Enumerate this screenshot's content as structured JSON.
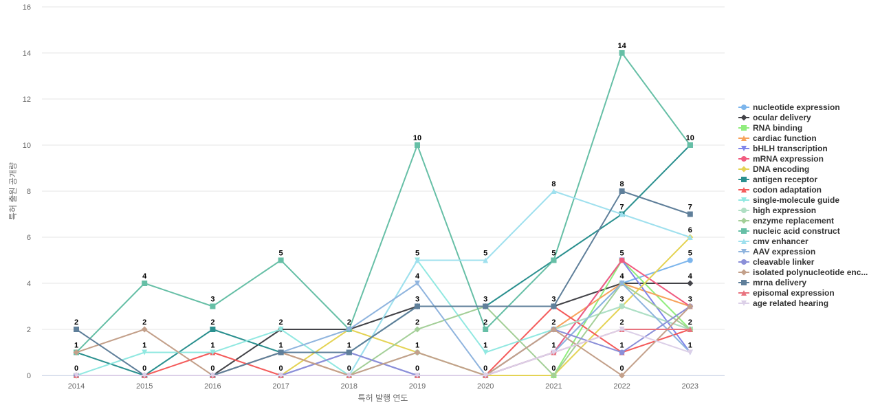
{
  "chart_data": {
    "type": "line",
    "title": "",
    "xlabel": "특허 발행 연도",
    "ylabel": "특허 출원 공개량",
    "categories": [
      "2014",
      "2015",
      "2016",
      "2017",
      "2018",
      "2019",
      "2020",
      "2021",
      "2022",
      "2023"
    ],
    "ylim": [
      0,
      16
    ],
    "yticks": [
      0,
      2,
      4,
      6,
      8,
      10,
      12,
      14,
      16
    ],
    "grid": true,
    "legend": "right",
    "series": [
      {
        "name": "nucleotide expression",
        "color": "#7cb5ec",
        "marker": "circle",
        "values": [
          0,
          0,
          0,
          0,
          0,
          0,
          0,
          1,
          4,
          5
        ]
      },
      {
        "name": "ocular delivery",
        "color": "#434348",
        "marker": "diamond",
        "values": [
          0,
          0,
          0,
          2,
          2,
          3,
          3,
          3,
          4,
          4
        ]
      },
      {
        "name": "RNA binding",
        "color": "#90ed7d",
        "marker": "square",
        "values": [
          0,
          0,
          0,
          0,
          0,
          0,
          0,
          0,
          5,
          2
        ]
      },
      {
        "name": "cardiac function",
        "color": "#f7a35c",
        "marker": "triangle",
        "values": [
          0,
          0,
          0,
          1,
          0,
          0,
          0,
          2,
          4,
          3
        ]
      },
      {
        "name": "bHLH transcription",
        "color": "#8085e9",
        "marker": "triangle-down",
        "values": [
          0,
          0,
          0,
          0,
          1,
          0,
          0,
          1,
          5,
          1
        ]
      },
      {
        "name": "mRNA expression",
        "color": "#f15c80",
        "marker": "circle",
        "values": [
          0,
          0,
          0,
          0,
          0,
          0,
          0,
          1,
          5,
          3
        ]
      },
      {
        "name": "DNA encoding",
        "color": "#e4d354",
        "marker": "diamond",
        "values": [
          0,
          0,
          0,
          0,
          2,
          1,
          0,
          0,
          3,
          6
        ]
      },
      {
        "name": "antigen receptor",
        "color": "#2b908f",
        "marker": "square",
        "values": [
          1,
          0,
          2,
          1,
          1,
          3,
          3,
          5,
          7,
          10
        ]
      },
      {
        "name": "codon adaptation",
        "color": "#f45b5b",
        "marker": "triangle",
        "values": [
          0,
          0,
          1,
          0,
          0,
          0,
          0,
          3,
          1,
          2
        ]
      },
      {
        "name": "single-molecule guide",
        "color": "#91e8e1",
        "marker": "triangle-down",
        "values": [
          0,
          1,
          1,
          2,
          0,
          5,
          1,
          2,
          3,
          2
        ]
      },
      {
        "name": "high expression",
        "color": "#b0dfc4",
        "marker": "circle",
        "values": [
          0,
          0,
          0,
          0,
          0,
          1,
          0,
          2,
          3,
          2
        ]
      },
      {
        "name": "enzyme replacement",
        "color": "#a4cf98",
        "marker": "diamond",
        "values": [
          0,
          0,
          0,
          0,
          0,
          2,
          3,
          0,
          4,
          2
        ]
      },
      {
        "name": "nucleic acid construct",
        "color": "#66bfa6",
        "marker": "square",
        "values": [
          1,
          4,
          3,
          5,
          2,
          10,
          2,
          5,
          14,
          10
        ]
      },
      {
        "name": "cmv enhancer",
        "color": "#9fe0ee",
        "marker": "triangle",
        "values": [
          0,
          0,
          0,
          0,
          0,
          5,
          5,
          8,
          7,
          6
        ]
      },
      {
        "name": "AAV expression",
        "color": "#8fb4de",
        "marker": "triangle-down",
        "values": [
          0,
          0,
          0,
          1,
          2,
          4,
          0,
          1,
          4,
          1
        ]
      },
      {
        "name": "cleavable linker",
        "color": "#8b8fd8",
        "marker": "circle",
        "values": [
          0,
          0,
          0,
          0,
          1,
          0,
          0,
          2,
          1,
          3
        ]
      },
      {
        "name": "isolated polynucleotide enc...",
        "color": "#c3a08a",
        "marker": "diamond",
        "values": [
          1,
          2,
          0,
          1,
          0,
          1,
          0,
          2,
          0,
          3
        ]
      },
      {
        "name": "mrna delivery",
        "color": "#5f7f9a",
        "marker": "square",
        "values": [
          2,
          0,
          0,
          1,
          1,
          3,
          3,
          3,
          8,
          7
        ]
      },
      {
        "name": "episomal expression",
        "color": "#e8737f",
        "marker": "triangle",
        "values": [
          0,
          0,
          0,
          0,
          0,
          0,
          0,
          1,
          2,
          2
        ]
      },
      {
        "name": "age related hearing",
        "color": "#dcd0e8",
        "marker": "triangle-down",
        "values": [
          0,
          0,
          0,
          0,
          0,
          0,
          0,
          1,
          2,
          1
        ]
      }
    ],
    "data_labels": [
      {
        "x": "2014",
        "y": 0,
        "text": "0"
      },
      {
        "x": "2014",
        "y": 1,
        "text": "1"
      },
      {
        "x": "2014",
        "y": 2,
        "text": "2"
      },
      {
        "x": "2015",
        "y": 0,
        "text": "0"
      },
      {
        "x": "2015",
        "y": 1,
        "text": "1"
      },
      {
        "x": "2015",
        "y": 2,
        "text": "2"
      },
      {
        "x": "2015",
        "y": 4,
        "text": "4"
      },
      {
        "x": "2016",
        "y": 0,
        "text": "0"
      },
      {
        "x": "2016",
        "y": 1,
        "text": "1"
      },
      {
        "x": "2016",
        "y": 2,
        "text": "2"
      },
      {
        "x": "2016",
        "y": 3,
        "text": "3"
      },
      {
        "x": "2017",
        "y": 0,
        "text": "0"
      },
      {
        "x": "2017",
        "y": 1,
        "text": "1"
      },
      {
        "x": "2017",
        "y": 2,
        "text": "2"
      },
      {
        "x": "2017",
        "y": 5,
        "text": "5"
      },
      {
        "x": "2018",
        "y": 0,
        "text": "0"
      },
      {
        "x": "2018",
        "y": 1,
        "text": "1"
      },
      {
        "x": "2018",
        "y": 2,
        "text": "2"
      },
      {
        "x": "2019",
        "y": 0,
        "text": "0"
      },
      {
        "x": "2019",
        "y": 1,
        "text": "1"
      },
      {
        "x": "2019",
        "y": 2,
        "text": "2"
      },
      {
        "x": "2019",
        "y": 3,
        "text": "3"
      },
      {
        "x": "2019",
        "y": 4,
        "text": "4"
      },
      {
        "x": "2019",
        "y": 5,
        "text": "5"
      },
      {
        "x": "2019",
        "y": 10,
        "text": "10"
      },
      {
        "x": "2020",
        "y": 0,
        "text": "0"
      },
      {
        "x": "2020",
        "y": 1,
        "text": "1"
      },
      {
        "x": "2020",
        "y": 2,
        "text": "2"
      },
      {
        "x": "2020",
        "y": 3,
        "text": "3"
      },
      {
        "x": "2020",
        "y": 5,
        "text": "5"
      },
      {
        "x": "2021",
        "y": 0,
        "text": "0"
      },
      {
        "x": "2021",
        "y": 1,
        "text": "1"
      },
      {
        "x": "2021",
        "y": 2,
        "text": "2"
      },
      {
        "x": "2021",
        "y": 3,
        "text": "3"
      },
      {
        "x": "2021",
        "y": 5,
        "text": "5"
      },
      {
        "x": "2021",
        "y": 8,
        "text": "8"
      },
      {
        "x": "2022",
        "y": 0,
        "text": "0"
      },
      {
        "x": "2022",
        "y": 1,
        "text": "1"
      },
      {
        "x": "2022",
        "y": 2,
        "text": "2"
      },
      {
        "x": "2022",
        "y": 3,
        "text": "3"
      },
      {
        "x": "2022",
        "y": 4,
        "text": "4"
      },
      {
        "x": "2022",
        "y": 5,
        "text": "5"
      },
      {
        "x": "2022",
        "y": 7,
        "text": "7"
      },
      {
        "x": "2022",
        "y": 8,
        "text": "8"
      },
      {
        "x": "2022",
        "y": 14,
        "text": "14"
      },
      {
        "x": "2023",
        "y": 1,
        "text": "1"
      },
      {
        "x": "2023",
        "y": 2,
        "text": "2"
      },
      {
        "x": "2023",
        "y": 3,
        "text": "3"
      },
      {
        "x": "2023",
        "y": 4,
        "text": "4"
      },
      {
        "x": "2023",
        "y": 5,
        "text": "5"
      },
      {
        "x": "2023",
        "y": 6,
        "text": "6"
      },
      {
        "x": "2023",
        "y": 7,
        "text": "7"
      },
      {
        "x": "2023",
        "y": 10,
        "text": "10"
      }
    ]
  }
}
